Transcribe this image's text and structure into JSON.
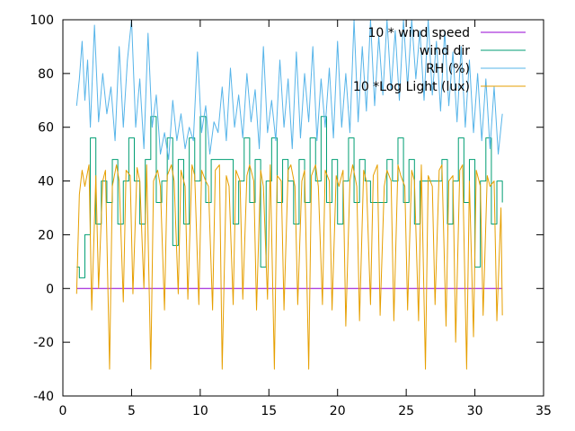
{
  "chart_data": {
    "type": "line",
    "title": "",
    "xlabel": "",
    "ylabel": "",
    "xlim": [
      0,
      35
    ],
    "ylim": [
      -40,
      100
    ],
    "xticks": [
      0,
      5,
      10,
      15,
      20,
      25,
      30,
      35
    ],
    "yticks": [
      -40,
      -20,
      0,
      20,
      40,
      60,
      80,
      100
    ],
    "xtick_labels": [
      "0",
      "5",
      "10",
      "15",
      "20",
      "25",
      "30",
      "35"
    ],
    "ytick_labels": [
      "-40",
      "-20",
      "0",
      "20",
      "40",
      "60",
      "80",
      "100"
    ],
    "grid": false,
    "legend_position": "top-right",
    "series": [
      {
        "name": "10 * wind speed",
        "color": "#9400d3",
        "step": false,
        "x": [
          1,
          32
        ],
        "y": [
          0,
          0
        ]
      },
      {
        "name": "wind dir",
        "color": "#009e73",
        "step": true,
        "x": [
          1.0,
          1.2,
          1.6,
          2.0,
          2.4,
          2.8,
          3.2,
          3.6,
          4.0,
          4.4,
          4.8,
          5.2,
          5.6,
          6.0,
          6.4,
          6.8,
          7.2,
          7.6,
          8.0,
          8.4,
          8.8,
          9.2,
          9.6,
          10.0,
          10.4,
          10.8,
          11.2,
          11.6,
          12.0,
          12.4,
          12.8,
          13.2,
          13.6,
          14.0,
          14.4,
          14.8,
          15.2,
          15.6,
          16.0,
          16.4,
          16.8,
          17.2,
          17.6,
          18.0,
          18.4,
          18.8,
          19.2,
          19.6,
          20.0,
          20.4,
          20.8,
          21.2,
          21.6,
          22.0,
          22.4,
          22.8,
          23.2,
          23.6,
          24.0,
          24.4,
          24.8,
          25.2,
          25.6,
          26.0,
          26.4,
          26.8,
          27.2,
          27.6,
          28.0,
          28.4,
          28.8,
          29.2,
          29.6,
          30.0,
          30.4,
          30.8,
          31.2,
          31.6,
          32.0
        ],
        "y": [
          8,
          4,
          20,
          56,
          24,
          40,
          32,
          48,
          24,
          40,
          56,
          40,
          24,
          48,
          64,
          32,
          40,
          56,
          16,
          48,
          24,
          56,
          40,
          64,
          32,
          48,
          48,
          48,
          48,
          24,
          40,
          56,
          32,
          48,
          8,
          40,
          56,
          32,
          48,
          40,
          24,
          48,
          32,
          56,
          40,
          64,
          32,
          48,
          24,
          40,
          56,
          32,
          48,
          40,
          32,
          32,
          32,
          48,
          40,
          56,
          32,
          48,
          24,
          40,
          40,
          40,
          40,
          48,
          24,
          40,
          56,
          32,
          48,
          8,
          40,
          56,
          24,
          40,
          32
        ]
      },
      {
        "name": "RH (%)",
        "color": "#56b4e9",
        "step": false,
        "x": [
          1.0,
          1.2,
          1.4,
          1.6,
          1.8,
          2.0,
          2.3,
          2.6,
          2.9,
          3.2,
          3.5,
          3.8,
          4.1,
          4.4,
          4.7,
          5.0,
          5.3,
          5.6,
          5.9,
          6.2,
          6.5,
          6.8,
          7.1,
          7.4,
          7.7,
          8.0,
          8.3,
          8.6,
          8.9,
          9.2,
          9.5,
          9.8,
          10.1,
          10.4,
          10.7,
          11.0,
          11.3,
          11.6,
          11.9,
          12.2,
          12.5,
          12.8,
          13.1,
          13.4,
          13.7,
          14.0,
          14.3,
          14.6,
          14.9,
          15.2,
          15.5,
          15.8,
          16.1,
          16.4,
          16.7,
          17.0,
          17.3,
          17.6,
          17.9,
          18.2,
          18.5,
          18.8,
          19.1,
          19.4,
          19.7,
          20.0,
          20.3,
          20.6,
          20.9,
          21.2,
          21.5,
          21.8,
          22.1,
          22.4,
          22.7,
          23.0,
          23.3,
          23.6,
          23.9,
          24.2,
          24.5,
          24.8,
          25.1,
          25.4,
          25.7,
          26.0,
          26.3,
          26.6,
          26.9,
          27.2,
          27.5,
          27.8,
          28.1,
          28.4,
          28.7,
          29.0,
          29.3,
          29.6,
          29.9,
          30.2,
          30.5,
          30.8,
          31.1,
          31.4,
          31.7,
          32.0
        ],
        "y": [
          68,
          78,
          92,
          70,
          85,
          60,
          98,
          62,
          80,
          65,
          75,
          55,
          90,
          60,
          85,
          100,
          60,
          78,
          52,
          95,
          60,
          72,
          50,
          58,
          48,
          70,
          55,
          65,
          52,
          60,
          55,
          88,
          58,
          68,
          50,
          62,
          58,
          75,
          55,
          82,
          60,
          72,
          56,
          80,
          62,
          74,
          52,
          90,
          58,
          70,
          55,
          85,
          60,
          78,
          52,
          88,
          56,
          80,
          62,
          90,
          55,
          78,
          60,
          82,
          56,
          92,
          60,
          80,
          58,
          100,
          62,
          90,
          66,
          100,
          68,
          94,
          72,
          100,
          74,
          96,
          70,
          100,
          75,
          100,
          78,
          96,
          70,
          100,
          72,
          92,
          66,
          96,
          68,
          88,
          62,
          90,
          60,
          85,
          58,
          80,
          55,
          78,
          52,
          75,
          50,
          65
        ]
      },
      {
        "name": "10 *Log Light (lux)",
        "color": "#e69f00",
        "step": false,
        "x": [
          1.0,
          1.2,
          1.4,
          1.6,
          1.9,
          2.1,
          2.4,
          2.6,
          2.9,
          3.1,
          3.4,
          3.6,
          3.9,
          4.1,
          4.4,
          4.6,
          4.9,
          5.1,
          5.4,
          5.6,
          5.9,
          6.1,
          6.4,
          6.6,
          6.9,
          7.1,
          7.4,
          7.6,
          7.9,
          8.1,
          8.4,
          8.6,
          8.9,
          9.1,
          9.4,
          9.6,
          9.9,
          10.1,
          10.4,
          10.6,
          10.9,
          11.1,
          11.4,
          11.6,
          11.9,
          12.1,
          12.4,
          12.6,
          12.9,
          13.1,
          13.4,
          13.6,
          13.9,
          14.1,
          14.4,
          14.6,
          14.9,
          15.1,
          15.4,
          15.6,
          15.9,
          16.1,
          16.4,
          16.6,
          16.9,
          17.1,
          17.4,
          17.6,
          17.9,
          18.1,
          18.4,
          18.6,
          18.9,
          19.1,
          19.4,
          19.6,
          19.9,
          20.1,
          20.4,
          20.6,
          20.9,
          21.1,
          21.4,
          21.6,
          21.9,
          22.1,
          22.4,
          22.6,
          22.9,
          23.1,
          23.4,
          23.6,
          23.9,
          24.1,
          24.4,
          24.6,
          24.9,
          25.1,
          25.4,
          25.6,
          25.9,
          26.1,
          26.4,
          26.6,
          26.9,
          27.1,
          27.4,
          27.6,
          27.9,
          28.1,
          28.4,
          28.6,
          28.9,
          29.1,
          29.4,
          29.6,
          29.9,
          30.1,
          30.4,
          30.6,
          30.9,
          31.1,
          31.4,
          31.6,
          31.9,
          32.0
        ],
        "y": [
          -2,
          35,
          44,
          38,
          46,
          -8,
          42,
          0,
          40,
          44,
          -30,
          38,
          46,
          40,
          -5,
          44,
          42,
          -2,
          45,
          40,
          0,
          46,
          -30,
          40,
          44,
          38,
          -8,
          42,
          46,
          40,
          -2,
          44,
          38,
          -4,
          46,
          42,
          -6,
          44,
          40,
          38,
          -8,
          44,
          46,
          -30,
          42,
          38,
          -6,
          44,
          40,
          -4,
          42,
          46,
          40,
          -8,
          44,
          38,
          -4,
          46,
          -30,
          42,
          40,
          -8,
          44,
          46,
          38,
          -6,
          40,
          44,
          -30,
          42,
          46,
          38,
          -6,
          44,
          40,
          -8,
          42,
          38,
          44,
          -14,
          40,
          46,
          38,
          -12,
          44,
          40,
          -6,
          42,
          46,
          -10,
          38,
          44,
          40,
          -12,
          46,
          42,
          38,
          -8,
          44,
          40,
          -12,
          46,
          -30,
          42,
          38,
          -6,
          44,
          46,
          -14,
          40,
          42,
          -20,
          44,
          46,
          -30,
          40,
          -18,
          44,
          38,
          -10,
          42,
          38,
          40,
          -12,
          30,
          -10
        ]
      }
    ]
  }
}
